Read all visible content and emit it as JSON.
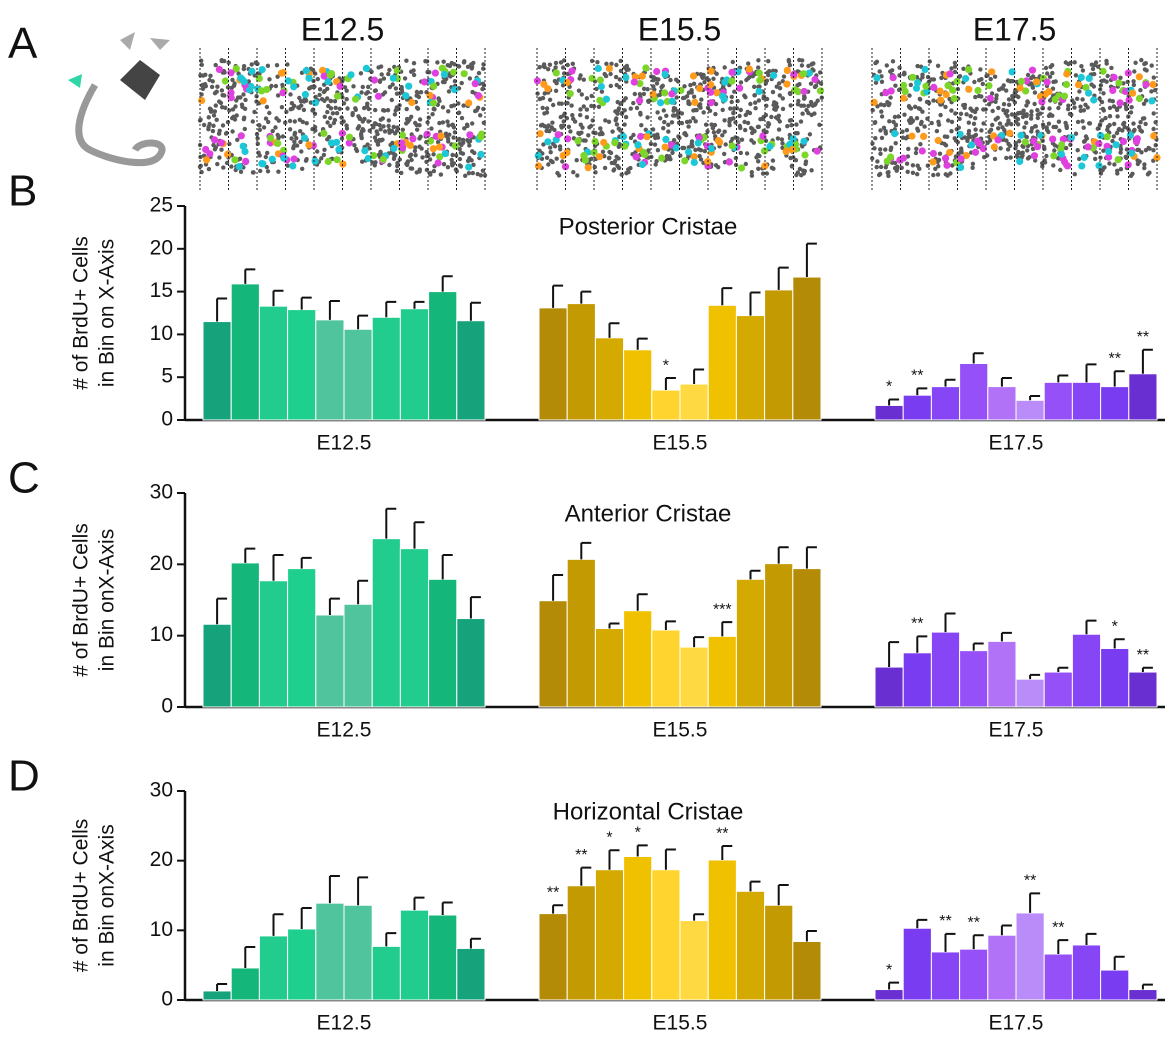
{
  "panel_a": {
    "letter": "A",
    "stages": [
      "E12.5",
      "E15.5",
      "E17.5"
    ]
  },
  "chart_data": [
    {
      "type": "bar",
      "panel": "B",
      "title": "Posterior Cristae",
      "y_label": [
        "# of BrdU+ Cells",
        "in Bin on X-Axis"
      ],
      "ylim": [
        0,
        25
      ],
      "yticks": [
        0,
        5,
        10,
        15,
        20,
        25
      ],
      "groups": [
        {
          "name": "E12.5",
          "values": [
            11.5,
            15.9,
            13.3,
            12.9,
            11.7,
            10.6,
            12.0,
            13.0,
            15.0,
            11.6
          ],
          "errors": [
            2.7,
            1.7,
            1.8,
            1.4,
            2.2,
            1.6,
            1.8,
            0.8,
            1.8,
            2.1
          ],
          "colors": [
            "#16a37c",
            "#14b67a",
            "#22cc8e",
            "#1fcf8e",
            "#50c49c",
            "#50c49c",
            "#22cc8e",
            "#22cc8e",
            "#14b67a",
            "#16a37c"
          ],
          "annotations": [
            null,
            null,
            null,
            null,
            null,
            null,
            null,
            null,
            null,
            null
          ]
        },
        {
          "name": "E15.5",
          "values": [
            13.1,
            13.6,
            9.6,
            8.2,
            3.5,
            4.2,
            13.4,
            12.2,
            15.2,
            16.7
          ],
          "errors": [
            2.6,
            1.4,
            1.7,
            1.3,
            1.4,
            1.7,
            2.0,
            2.7,
            2.6,
            3.9
          ],
          "colors": [
            "#b38b07",
            "#c49a02",
            "#d4aa00",
            "#efc100",
            "#ffd42e",
            "#ffd942",
            "#efc100",
            "#d4aa00",
            "#c49a02",
            "#b38b07"
          ],
          "annotations": [
            null,
            null,
            null,
            null,
            "*",
            null,
            null,
            null,
            null,
            null
          ]
        },
        {
          "name": "E17.5",
          "values": [
            1.7,
            2.9,
            3.9,
            6.6,
            3.9,
            2.3,
            4.4,
            4.4,
            3.9,
            5.4
          ],
          "errors": [
            0.7,
            0.8,
            0.8,
            1.2,
            1.0,
            0.5,
            0.8,
            2.1,
            1.8,
            2.8
          ],
          "colors": [
            "#6a2fd0",
            "#7a3cf0",
            "#8746f5",
            "#9550f7",
            "#b172f8",
            "#b98cf9",
            "#9550f7",
            "#8746f5",
            "#7a3cf0",
            "#6a2fd0"
          ],
          "annotations": [
            "*",
            "**",
            null,
            null,
            null,
            null,
            null,
            null,
            "**",
            "**"
          ]
        }
      ]
    },
    {
      "type": "bar",
      "panel": "C",
      "title": "Anterior Cristae",
      "y_label": [
        "# of BrdU+ Cells",
        "in Bin onX-Axis"
      ],
      "ylim": [
        0,
        30
      ],
      "yticks": [
        0,
        10,
        20,
        30
      ],
      "groups": [
        {
          "name": "E12.5",
          "values": [
            11.6,
            20.2,
            17.7,
            19.4,
            12.9,
            14.4,
            23.6,
            22.2,
            17.9,
            12.4
          ],
          "errors": [
            3.6,
            2.0,
            3.6,
            1.5,
            2.3,
            3.3,
            4.2,
            3.7,
            3.4,
            3.0
          ],
          "colors": [
            "#16a37c",
            "#14b67a",
            "#22cc8e",
            "#1fcf8e",
            "#50c49c",
            "#50c49c",
            "#22cc8e",
            "#22cc8e",
            "#14b67a",
            "#16a37c"
          ],
          "annotations": [
            null,
            null,
            null,
            null,
            null,
            null,
            null,
            null,
            null,
            null
          ]
        },
        {
          "name": "E15.5",
          "values": [
            14.9,
            20.7,
            11.0,
            13.5,
            10.8,
            8.4,
            9.9,
            17.9,
            20.1,
            19.4
          ],
          "errors": [
            3.6,
            2.3,
            0.7,
            2.3,
            1.2,
            1.4,
            2.0,
            1.2,
            2.3,
            3.0
          ],
          "colors": [
            "#b38b07",
            "#c49a02",
            "#d4aa00",
            "#efc100",
            "#ffd42e",
            "#ffd942",
            "#efc100",
            "#d4aa00",
            "#c49a02",
            "#b38b07"
          ],
          "annotations": [
            null,
            null,
            null,
            null,
            null,
            null,
            "***",
            null,
            null,
            null
          ]
        },
        {
          "name": "E17.5",
          "values": [
            5.6,
            7.6,
            10.5,
            7.9,
            9.2,
            3.9,
            4.9,
            10.2,
            8.2,
            4.9
          ],
          "errors": [
            3.5,
            2.3,
            2.6,
            1.0,
            1.2,
            0.6,
            0.6,
            1.9,
            1.3,
            0.6
          ],
          "colors": [
            "#6a2fd0",
            "#7a3cf0",
            "#8746f5",
            "#9550f7",
            "#b172f8",
            "#b98cf9",
            "#9550f7",
            "#8746f5",
            "#7a3cf0",
            "#6a2fd0"
          ],
          "annotations": [
            null,
            "**",
            null,
            null,
            null,
            null,
            null,
            null,
            "*",
            "**"
          ]
        }
      ]
    },
    {
      "type": "bar",
      "panel": "D",
      "title": "Horizontal Cristae",
      "y_label": [
        "# of BrdU+ Cells",
        "in Bin onX-Axis"
      ],
      "ylim": [
        0,
        30
      ],
      "yticks": [
        0,
        10,
        20,
        30
      ],
      "groups": [
        {
          "name": "E12.5",
          "values": [
            1.3,
            4.6,
            9.2,
            10.2,
            13.9,
            13.6,
            7.7,
            12.9,
            12.2,
            7.4
          ],
          "errors": [
            1.0,
            3.0,
            3.1,
            3.0,
            3.9,
            4.0,
            1.9,
            1.8,
            1.8,
            1.4
          ],
          "colors": [
            "#16a37c",
            "#14b67a",
            "#22cc8e",
            "#1fcf8e",
            "#50c49c",
            "#50c49c",
            "#22cc8e",
            "#22cc8e",
            "#14b67a",
            "#16a37c"
          ],
          "annotations": [
            null,
            null,
            null,
            null,
            null,
            null,
            null,
            null,
            null,
            null
          ]
        },
        {
          "name": "E15.5",
          "values": [
            12.4,
            16.4,
            18.7,
            20.6,
            18.7,
            11.4,
            20.1,
            15.6,
            13.6,
            8.4
          ],
          "errors": [
            1.2,
            2.6,
            2.8,
            1.6,
            2.9,
            0.9,
            2.0,
            1.4,
            2.9,
            1.5
          ],
          "colors": [
            "#b38b07",
            "#c49a02",
            "#d4aa00",
            "#efc100",
            "#ffd42e",
            "#ffd942",
            "#efc100",
            "#d4aa00",
            "#c49a02",
            "#b38b07"
          ],
          "annotations": [
            "**",
            "**",
            "*",
            "*",
            null,
            null,
            "**",
            null,
            null,
            null
          ]
        },
        {
          "name": "E17.5",
          "values": [
            1.5,
            10.3,
            6.9,
            7.3,
            9.3,
            12.5,
            6.6,
            7.9,
            4.3,
            1.5
          ],
          "errors": [
            1.0,
            1.2,
            2.6,
            2.0,
            1.4,
            2.8,
            2.0,
            1.6,
            1.9,
            0.7
          ],
          "colors": [
            "#6a2fd0",
            "#7a3cf0",
            "#8746f5",
            "#9550f7",
            "#b172f8",
            "#b98cf9",
            "#9550f7",
            "#8746f5",
            "#7a3cf0",
            "#6a2fd0"
          ],
          "annotations": [
            "*",
            null,
            "**",
            "**",
            null,
            "**",
            "**",
            null,
            null,
            null
          ]
        }
      ]
    }
  ]
}
